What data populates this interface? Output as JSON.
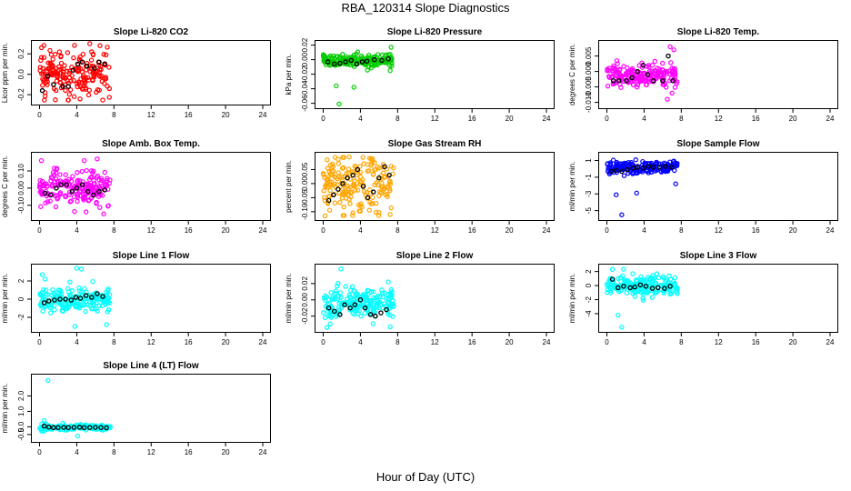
{
  "title": "RBA_120314  Slope Diagnostics",
  "xlabel": "Hour of Day (UTC)",
  "x_ticks": [
    "0",
    "4",
    "8",
    "12",
    "16",
    "20",
    "24"
  ],
  "chart_data": [
    {
      "type": "scatter",
      "title": "Slope Li-820 CO2",
      "ylabel": "Licor ppm per min.",
      "color": "#ff0000",
      "xlim": [
        0,
        24
      ],
      "ylim": [
        -0.27,
        0.3
      ],
      "yticks": [
        -0.2,
        0,
        0.2
      ],
      "ytick_labels": [
        "-0.2",
        "0.0",
        "0.2"
      ],
      "raw_x_range": [
        0,
        7.6
      ],
      "raw_y_center": 0.0,
      "raw_y_spread": 0.11,
      "outliers": [
        [
          1.7,
          -0.25
        ],
        [
          6.5,
          0.28
        ],
        [
          5.4,
          0.3
        ]
      ],
      "hourly": [
        [
          0.3,
          -0.16
        ],
        [
          0.9,
          -0.02
        ],
        [
          1.5,
          -0.1
        ],
        [
          2.5,
          -0.12
        ],
        [
          3.1,
          -0.12
        ],
        [
          3.6,
          0.04
        ],
        [
          4.1,
          0.1
        ],
        [
          4.6,
          0.12
        ],
        [
          5.1,
          0.08
        ],
        [
          5.9,
          0.06
        ],
        [
          6.4,
          0.12
        ],
        [
          7.0,
          0.1
        ]
      ]
    },
    {
      "type": "scatter",
      "title": "Slope Li-820 Pressure",
      "ylabel": "kPa per min.",
      "color": "#00cc00",
      "xlim": [
        0,
        24
      ],
      "ylim": [
        -0.063,
        0.022
      ],
      "yticks": [
        -0.06,
        -0.04,
        -0.02,
        0,
        0.02
      ],
      "ytick_labels": [
        "-0.06",
        "-0.04",
        "-0.02",
        "0.00",
        "0.02"
      ],
      "raw_x_range": [
        0,
        7.4
      ],
      "raw_y_center": -0.001,
      "raw_y_spread": 0.004,
      "outliers": [
        [
          1.4,
          -0.036
        ],
        [
          3.3,
          -0.038
        ],
        [
          7.2,
          -0.015
        ],
        [
          1.7,
          -0.061
        ],
        [
          7.3,
          0.017
        ]
      ],
      "hourly": [
        [
          0.5,
          -0.003
        ],
        [
          1.2,
          -0.006
        ],
        [
          1.8,
          -0.005
        ],
        [
          2.4,
          -0.003
        ],
        [
          3.0,
          -0.001
        ],
        [
          3.6,
          -0.006
        ],
        [
          4.2,
          -0.003
        ],
        [
          4.7,
          -0.002
        ],
        [
          5.5,
          0.0
        ],
        [
          6.3,
          -0.001
        ],
        [
          7.0,
          0.001
        ]
      ]
    },
    {
      "type": "scatter",
      "title": "Slope Li-820 Temp.",
      "ylabel": "degrees C per min.",
      "color": "#ff00ff",
      "xlim": [
        0,
        24
      ],
      "ylim": [
        -0.011,
        0.009
      ],
      "yticks": [
        -0.01,
        -0.005,
        0,
        0.005
      ],
      "ytick_labels": [
        "-0.010",
        "-0.005",
        "0.000",
        "0.005"
      ],
      "raw_x_range": [
        0,
        7.6
      ],
      "raw_y_center": -0.0015,
      "raw_y_spread": 0.0018,
      "outliers": [
        [
          6.5,
          -0.009
        ],
        [
          6.8,
          0.008
        ],
        [
          7.2,
          0.007
        ],
        [
          7.0,
          -0.007
        ]
      ],
      "hourly": [
        [
          0.7,
          -0.003
        ],
        [
          1.3,
          -0.003
        ],
        [
          2.1,
          -0.003
        ],
        [
          2.7,
          -0.002
        ],
        [
          3.3,
          0.0
        ],
        [
          3.9,
          0.002
        ],
        [
          4.4,
          -0.001
        ],
        [
          5.0,
          -0.003
        ],
        [
          6.0,
          -0.003
        ],
        [
          6.6,
          0.005
        ],
        [
          7.1,
          -0.003
        ]
      ]
    },
    {
      "type": "scatter",
      "title": "Slope Amb. Box Temp.",
      "ylabel": "degrees C per min.",
      "color": "#ff00ff",
      "xlim": [
        0,
        24
      ],
      "ylim": [
        -0.17,
        0.19
      ],
      "yticks": [
        -0.1,
        0,
        0.1
      ],
      "ytick_labels": [
        "-0.10",
        "0.00",
        "0.10"
      ],
      "raw_x_range": [
        0,
        7.6
      ],
      "raw_y_center": 0.0,
      "raw_y_spread": 0.05,
      "outliers": [
        [
          0.2,
          0.16
        ],
        [
          6.9,
          -0.15
        ],
        [
          4.8,
          0.16
        ],
        [
          6.2,
          0.17
        ]
      ],
      "hourly": [
        [
          0.6,
          -0.03
        ],
        [
          1.2,
          -0.04
        ],
        [
          1.8,
          0.0
        ],
        [
          2.3,
          0.02
        ],
        [
          2.9,
          0.02
        ],
        [
          3.5,
          -0.02
        ],
        [
          4.0,
          0.0
        ],
        [
          4.6,
          0.02
        ],
        [
          5.2,
          -0.02
        ],
        [
          5.8,
          -0.04
        ],
        [
          6.4,
          -0.02
        ],
        [
          7.0,
          -0.01
        ]
      ]
    },
    {
      "type": "scatter",
      "title": "Slope Gas Stream RH",
      "ylabel": "percent per min.",
      "color": "#ffa500",
      "xlim": [
        0,
        24
      ],
      "ylim": [
        -0.12,
        0.1
      ],
      "yticks": [
        -0.1,
        -0.05,
        0,
        0.05
      ],
      "ytick_labels": [
        "-0.10",
        "-0.05",
        "0.00",
        "0.05"
      ],
      "raw_x_range": [
        0,
        7.6
      ],
      "raw_y_center": 0.0,
      "raw_y_spread": 0.05,
      "outliers": [
        [
          0.2,
          -0.115
        ],
        [
          2.8,
          0.095
        ],
        [
          5.0,
          0.09
        ],
        [
          7.2,
          -0.11
        ]
      ],
      "hourly": [
        [
          0.6,
          -0.06
        ],
        [
          1.1,
          -0.04
        ],
        [
          1.6,
          -0.02
        ],
        [
          2.1,
          0.0
        ],
        [
          2.6,
          0.02
        ],
        [
          3.2,
          0.03
        ],
        [
          3.7,
          0.05
        ],
        [
          4.3,
          -0.01
        ],
        [
          4.8,
          -0.05
        ],
        [
          5.4,
          -0.03
        ],
        [
          6.0,
          0.02
        ],
        [
          6.6,
          0.06
        ],
        [
          7.1,
          0.03
        ]
      ]
    },
    {
      "type": "scatter",
      "title": "Slope Sample Flow",
      "ylabel": "ml/min per min.",
      "color": "#0000ff",
      "xlim": [
        0,
        24
      ],
      "ylim": [
        -5.8,
        1.6
      ],
      "yticks": [
        -5,
        -3,
        -1,
        1
      ],
      "ytick_labels": [
        "-5",
        "-3",
        "-1",
        "1"
      ],
      "raw_x_range": [
        0,
        7.6
      ],
      "raw_y_center": 0.2,
      "raw_y_spread": 0.4,
      "outliers": [
        [
          1.0,
          -3.1
        ],
        [
          1.6,
          -5.5
        ],
        [
          3.2,
          -2.9
        ],
        [
          7.4,
          -1.8
        ]
      ],
      "hourly": [
        [
          0.5,
          -0.3
        ],
        [
          1.0,
          -0.2
        ],
        [
          1.6,
          -0.3
        ],
        [
          2.2,
          -0.1
        ],
        [
          2.8,
          0.1
        ],
        [
          3.3,
          0.2
        ],
        [
          3.9,
          0.1
        ],
        [
          4.5,
          0.3
        ],
        [
          5.0,
          0.2
        ],
        [
          5.7,
          0.2
        ],
        [
          6.3,
          0.3
        ],
        [
          7.0,
          0.2
        ]
      ]
    },
    {
      "type": "scatter",
      "title": "Slope Line 1 Flow",
      "ylabel": "ml/min per min.",
      "color": "#00ffff",
      "xlim": [
        0,
        24
      ],
      "ylim": [
        -3.3,
        3.5
      ],
      "yticks": [
        -2,
        0,
        2
      ],
      "ytick_labels": [
        "-2",
        "0",
        "2"
      ],
      "raw_x_range": [
        0,
        7.6
      ],
      "raw_y_center": 0.0,
      "raw_y_spread": 0.6,
      "outliers": [
        [
          0.3,
          2.7
        ],
        [
          4.0,
          3.4
        ],
        [
          4.5,
          3.3
        ],
        [
          7.2,
          -2.8
        ],
        [
          3.8,
          -3.0
        ]
      ],
      "hourly": [
        [
          0.5,
          -0.4
        ],
        [
          1.0,
          -0.2
        ],
        [
          1.6,
          -0.1
        ],
        [
          2.2,
          0.0
        ],
        [
          2.8,
          0.0
        ],
        [
          3.4,
          -0.1
        ],
        [
          3.9,
          0.2
        ],
        [
          4.4,
          0.1
        ],
        [
          5.0,
          0.4
        ],
        [
          5.6,
          0.2
        ],
        [
          6.2,
          0.6
        ],
        [
          6.8,
          0.3
        ]
      ]
    },
    {
      "type": "scatter",
      "title": "Slope Line 2 Flow",
      "ylabel": "ml/min per min.",
      "color": "#00ffff",
      "xlim": [
        0,
        24
      ],
      "ylim": [
        -0.036,
        0.04
      ],
      "yticks": [
        -0.02,
        0,
        0.02
      ],
      "ytick_labels": [
        "-0.02",
        "0.00",
        "0.02"
      ],
      "raw_x_range": [
        0,
        7.6
      ],
      "raw_y_center": -0.005,
      "raw_y_spread": 0.01,
      "outliers": [
        [
          1.9,
          0.038
        ],
        [
          0.4,
          -0.034
        ],
        [
          7.0,
          0.022
        ]
      ],
      "hourly": [
        [
          0.6,
          -0.01
        ],
        [
          1.2,
          -0.014
        ],
        [
          1.8,
          -0.018
        ],
        [
          2.3,
          -0.006
        ],
        [
          2.9,
          -0.01
        ],
        [
          3.4,
          -0.006
        ],
        [
          4.0,
          0.0
        ],
        [
          4.5,
          -0.01
        ],
        [
          5.1,
          -0.018
        ],
        [
          5.6,
          -0.02
        ],
        [
          6.2,
          -0.016
        ],
        [
          6.8,
          -0.012
        ]
      ]
    },
    {
      "type": "scatter",
      "title": "Slope Line 3 Flow",
      "ylabel": "ml/min per min.",
      "color": "#00ffff",
      "xlim": [
        0,
        24
      ],
      "ylim": [
        -6.2,
        2.6
      ],
      "yticks": [
        -4,
        -2,
        0,
        2
      ],
      "ytick_labels": [
        "-4",
        "-2",
        "0",
        "2"
      ],
      "raw_x_range": [
        0,
        7.6
      ],
      "raw_y_center": 0.0,
      "raw_y_spread": 0.7,
      "outliers": [
        [
          0.6,
          2.3
        ],
        [
          1.2,
          -4.2
        ],
        [
          1.6,
          -5.9
        ]
      ],
      "hourly": [
        [
          0.6,
          0.9
        ],
        [
          1.2,
          -0.3
        ],
        [
          1.8,
          -0.1
        ],
        [
          2.5,
          -0.3
        ],
        [
          3.0,
          -0.2
        ],
        [
          3.6,
          0.1
        ],
        [
          4.2,
          -0.1
        ],
        [
          4.9,
          -0.4
        ],
        [
          5.5,
          -0.3
        ],
        [
          6.2,
          -0.4
        ],
        [
          6.8,
          -0.1
        ]
      ]
    },
    {
      "type": "scatter",
      "title": "Slope Line 4 (LT) Flow",
      "ylabel": "ml/min per min.",
      "color": "#00ffff",
      "xlim": [
        0,
        24
      ],
      "ylim": [
        -0.8,
        3.2
      ],
      "yticks": [
        -0.5,
        0.0,
        1.0,
        2.0
      ],
      "ytick_labels": [
        "-0.5",
        "0.0",
        "1.0",
        "2.0"
      ],
      "raw_x_range": [
        0,
        7.6
      ],
      "raw_y_center": -0.05,
      "raw_y_spread": 0.08,
      "outliers": [
        [
          0.9,
          3.0
        ],
        [
          4.1,
          -0.6
        ],
        [
          0.5,
          0.4
        ]
      ],
      "hourly": [
        [
          0.5,
          0.05
        ],
        [
          1.0,
          -0.02
        ],
        [
          1.5,
          -0.05
        ],
        [
          2.0,
          -0.05
        ],
        [
          2.6,
          -0.04
        ],
        [
          3.1,
          -0.05
        ],
        [
          3.7,
          -0.04
        ],
        [
          4.3,
          -0.03
        ],
        [
          4.8,
          -0.05
        ],
        [
          5.4,
          -0.05
        ],
        [
          6.0,
          -0.04
        ],
        [
          6.6,
          -0.05
        ],
        [
          7.2,
          -0.06
        ]
      ]
    }
  ]
}
